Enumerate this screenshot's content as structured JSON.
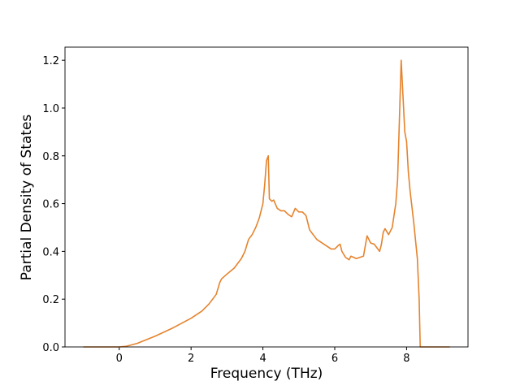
{
  "chart_data": {
    "type": "line",
    "xlabel": "Frequency (THz)",
    "ylabel": "Partial Density of States",
    "color": "#e5832d",
    "x": [
      -1.0,
      -0.5,
      0,
      0.2,
      0.5,
      1.0,
      1.5,
      2.0,
      2.3,
      2.5,
      2.7,
      2.8,
      2.85,
      3.0,
      3.2,
      3.4,
      3.5,
      3.6,
      3.7,
      3.8,
      3.9,
      4.0,
      4.05,
      4.1,
      4.15,
      4.18,
      4.25,
      4.3,
      4.4,
      4.5,
      4.6,
      4.7,
      4.8,
      4.9,
      5.0,
      5.1,
      5.2,
      5.3,
      5.5,
      5.7,
      5.9,
      6.0,
      6.1,
      6.15,
      6.2,
      6.3,
      6.4,
      6.45,
      6.6,
      6.7,
      6.8,
      6.9,
      7.0,
      7.1,
      7.15,
      7.25,
      7.3,
      7.35,
      7.4,
      7.5,
      7.6,
      7.7,
      7.75,
      7.8,
      7.85,
      7.9,
      7.95,
      8.0,
      8.05,
      8.1,
      8.2,
      8.3,
      8.35,
      8.38,
      8.5,
      9.2
    ],
    "values": [
      0,
      0,
      0,
      0.003,
      0.015,
      0.045,
      0.08,
      0.12,
      0.15,
      0.18,
      0.22,
      0.27,
      0.285,
      0.305,
      0.33,
      0.37,
      0.4,
      0.45,
      0.47,
      0.5,
      0.54,
      0.6,
      0.68,
      0.78,
      0.8,
      0.62,
      0.61,
      0.615,
      0.58,
      0.57,
      0.57,
      0.555,
      0.545,
      0.58,
      0.565,
      0.565,
      0.55,
      0.49,
      0.45,
      0.43,
      0.41,
      0.41,
      0.425,
      0.43,
      0.4,
      0.375,
      0.365,
      0.38,
      0.37,
      0.375,
      0.38,
      0.465,
      0.435,
      0.43,
      0.42,
      0.4,
      0.43,
      0.48,
      0.495,
      0.47,
      0.5,
      0.6,
      0.7,
      0.95,
      1.2,
      1.05,
      0.9,
      0.86,
      0.73,
      0.65,
      0.52,
      0.37,
      0.2,
      0,
      0,
      0
    ],
    "xlim": [
      -1.51,
      9.71
    ],
    "ylim": [
      0,
      1.255
    ],
    "xticks": [
      0,
      2,
      4,
      6,
      8
    ],
    "yticks": [
      {
        "value": 0,
        "label": "0.0"
      },
      {
        "value": 0.2,
        "label": "0.2"
      },
      {
        "value": 0.4,
        "label": "0.4"
      },
      {
        "value": 0.6,
        "label": "0.6"
      },
      {
        "value": 0.8,
        "label": "0.8"
      },
      {
        "value": 1.0,
        "label": "1.0"
      },
      {
        "value": 1.2,
        "label": "1.2"
      }
    ]
  }
}
